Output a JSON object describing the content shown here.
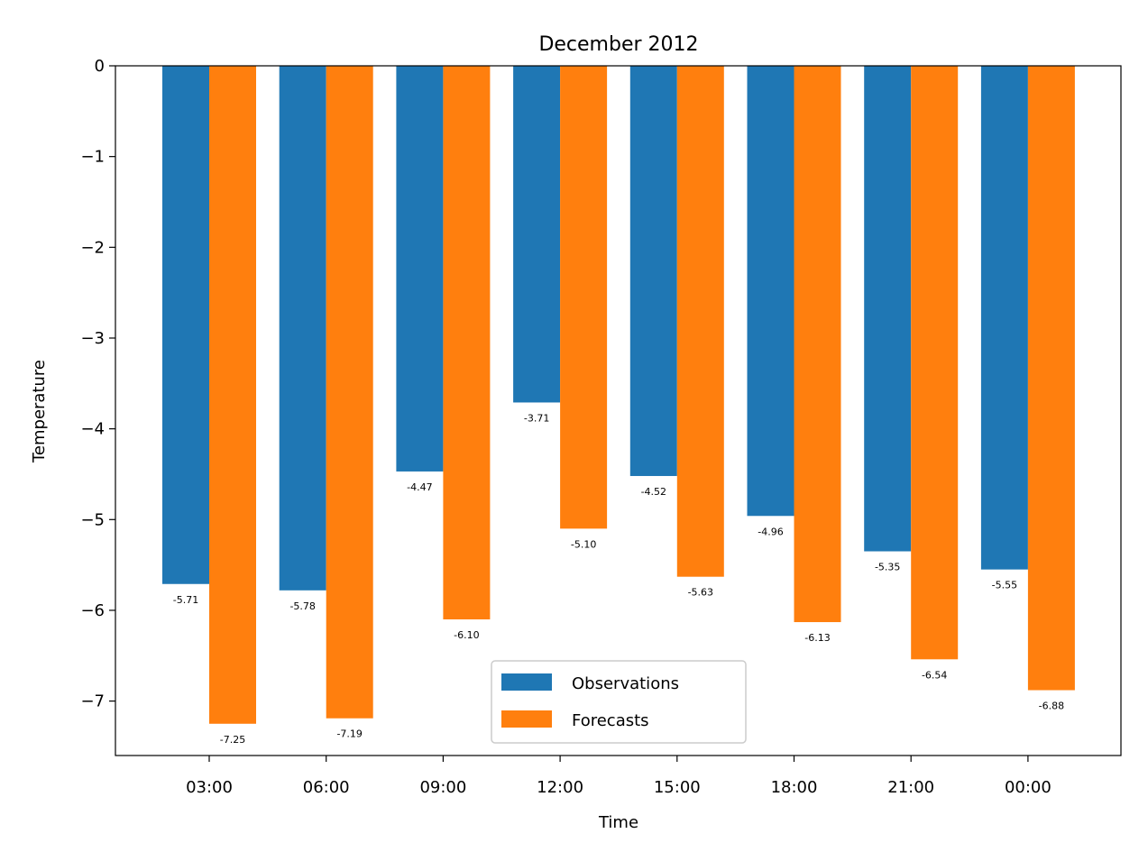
{
  "chart_data": {
    "type": "bar",
    "title": "December 2012",
    "xlabel": "Time",
    "ylabel": "Temperature",
    "categories": [
      "03:00",
      "06:00",
      "09:00",
      "12:00",
      "15:00",
      "18:00",
      "21:00",
      "00:00"
    ],
    "series": [
      {
        "name": "Observations",
        "color": "#1f77b4",
        "values": [
          -5.71,
          -5.78,
          -4.47,
          -3.71,
          -4.52,
          -4.96,
          -5.35,
          -5.55
        ],
        "labels": [
          "-5.71",
          "-5.78",
          "-4.47",
          "-3.71",
          "-4.52",
          "-4.96",
          "-5.35",
          "-5.55"
        ]
      },
      {
        "name": "Forecasts",
        "color": "#ff7f0e",
        "values": [
          -7.25,
          -7.19,
          -6.1,
          -5.1,
          -5.63,
          -6.13,
          -6.54,
          -6.88
        ],
        "labels": [
          "-7.25",
          "-7.19",
          "-6.10",
          "-5.10",
          "-5.63",
          "-6.13",
          "-6.54",
          "-6.88"
        ]
      }
    ],
    "ylim": [
      -7.6,
      0
    ],
    "yticks": [
      0,
      -1,
      -2,
      -3,
      -4,
      -5,
      -6,
      -7
    ],
    "ytick_labels": [
      "0",
      "−1",
      "−2",
      "−3",
      "−4",
      "−5",
      "−6",
      "−7"
    ],
    "grid": false,
    "legend_position": "lower-center"
  }
}
